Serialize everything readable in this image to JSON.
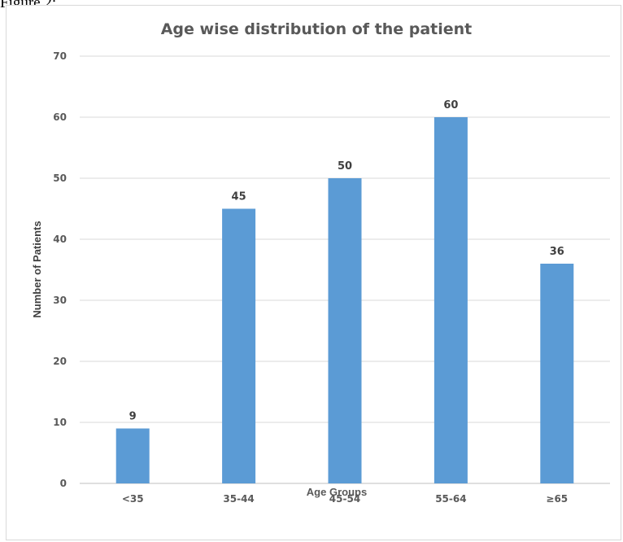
{
  "caption": "Figure 2:",
  "chart_data": {
    "type": "bar",
    "title": "Age wise distribution of the patient",
    "xlabel": "Age Groups",
    "ylabel": "Number of Patients",
    "categories": [
      "<35",
      "35-44",
      "45-54",
      "55-64",
      "≥65"
    ],
    "values": [
      9,
      45,
      50,
      60,
      36
    ],
    "ylim": [
      0,
      70
    ],
    "yticks": [
      0,
      10,
      20,
      30,
      40,
      50,
      60,
      70
    ],
    "grid": true,
    "legend": "none",
    "bar_color": "#5b9bd5",
    "data_labels": true
  }
}
